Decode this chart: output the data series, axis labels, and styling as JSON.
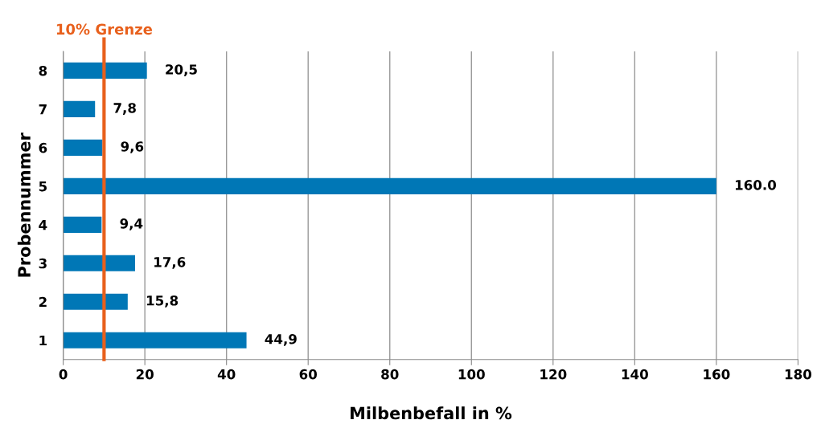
{
  "chart_data": {
    "type": "bar",
    "orientation": "horizontal",
    "xlabel": "Milbenbefall in %",
    "ylabel": "Probennummer",
    "categories": [
      "8",
      "7",
      "6",
      "5",
      "4",
      "3",
      "2",
      "1"
    ],
    "values": [
      20.5,
      7.8,
      9.6,
      160.0,
      9.4,
      17.6,
      15.8,
      44.9
    ],
    "value_labels": [
      "20,5",
      "7,8",
      "9,6",
      "160.0",
      "9,4",
      "17,6",
      "15,8",
      "44,9"
    ],
    "color": "#0077b6",
    "xlim": [
      0,
      180
    ],
    "xticks": [
      0,
      20,
      40,
      60,
      80,
      100,
      120,
      140,
      160,
      180
    ],
    "grid": "x",
    "ref_lines": [
      {
        "axis": "x",
        "value": 10,
        "label": "10% Grenze",
        "color": "#e8601c"
      }
    ]
  }
}
